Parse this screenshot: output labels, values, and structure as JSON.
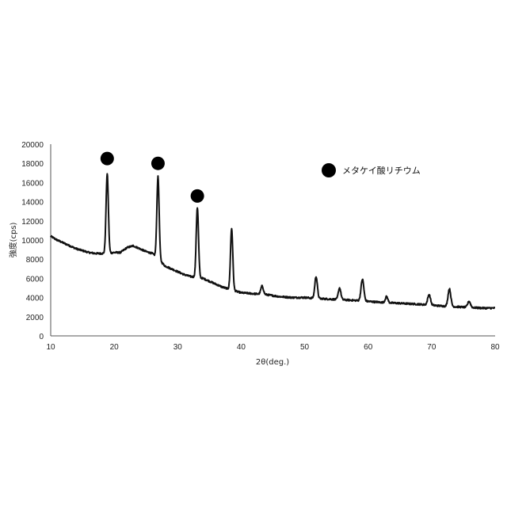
{
  "chart_data": {
    "type": "line",
    "title": "",
    "xlabel": "2θ(deg.)",
    "ylabel": "強度(cps)",
    "xlim": [
      10,
      80
    ],
    "ylim": [
      0,
      20000
    ],
    "x_ticks": [
      10,
      20,
      30,
      40,
      50,
      60,
      70,
      80
    ],
    "y_ticks": [
      0,
      2000,
      4000,
      6000,
      8000,
      10000,
      12000,
      14000,
      16000,
      18000,
      20000
    ],
    "grid": false,
    "series_color": "#111111",
    "baseline": [
      [
        10,
        10400
      ],
      [
        11,
        10000
      ],
      [
        12,
        9700
      ],
      [
        13,
        9400
      ],
      [
        14,
        9100
      ],
      [
        15,
        8900
      ],
      [
        16,
        8700
      ],
      [
        17,
        8600
      ],
      [
        18,
        8600
      ],
      [
        19,
        8600
      ],
      [
        20,
        8700
      ],
      [
        21,
        8700
      ],
      [
        22,
        9200
      ],
      [
        23,
        9400
      ],
      [
        24,
        9100
      ],
      [
        25,
        8800
      ],
      [
        26,
        8600
      ],
      [
        27,
        8000
      ],
      [
        28,
        7300
      ],
      [
        29,
        7000
      ],
      [
        30,
        6700
      ],
      [
        31,
        6400
      ],
      [
        32,
        6200
      ],
      [
        33,
        6100
      ],
      [
        34,
        6000
      ],
      [
        35,
        5700
      ],
      [
        36,
        5400
      ],
      [
        37,
        5100
      ],
      [
        38,
        4900
      ],
      [
        39,
        4700
      ],
      [
        40,
        4500
      ],
      [
        42,
        4400
      ],
      [
        44,
        4300
      ],
      [
        46,
        4100
      ],
      [
        48,
        4000
      ],
      [
        50,
        4000
      ],
      [
        52,
        3900
      ],
      [
        55,
        3800
      ],
      [
        58,
        3700
      ],
      [
        60,
        3600
      ],
      [
        62,
        3500
      ],
      [
        65,
        3400
      ],
      [
        68,
        3300
      ],
      [
        70,
        3200
      ],
      [
        72,
        3100
      ],
      [
        75,
        3000
      ],
      [
        78,
        2900
      ],
      [
        80,
        2900
      ]
    ],
    "peaks": [
      {
        "x": 18.9,
        "y": 16900,
        "width": 0.18
      },
      {
        "x": 26.9,
        "y": 16600,
        "width": 0.18
      },
      {
        "x": 33.1,
        "y": 13400,
        "width": 0.18
      },
      {
        "x": 38.5,
        "y": 11200,
        "width": 0.18
      },
      {
        "x": 43.3,
        "y": 5200,
        "width": 0.2
      },
      {
        "x": 51.8,
        "y": 6200,
        "width": 0.2
      },
      {
        "x": 55.5,
        "y": 5000,
        "width": 0.2
      },
      {
        "x": 59.1,
        "y": 5900,
        "width": 0.22
      },
      {
        "x": 62.9,
        "y": 4100,
        "width": 0.2
      },
      {
        "x": 69.6,
        "y": 4300,
        "width": 0.22
      },
      {
        "x": 72.8,
        "y": 4900,
        "width": 0.22
      },
      {
        "x": 75.9,
        "y": 3600,
        "width": 0.22
      }
    ],
    "markers": [
      {
        "x": 18.9,
        "y": 18500
      },
      {
        "x": 26.9,
        "y": 18000
      },
      {
        "x": 33.1,
        "y": 14600
      }
    ],
    "legend": {
      "label": "メタケイ酸リチウム",
      "position": "top-right"
    }
  }
}
